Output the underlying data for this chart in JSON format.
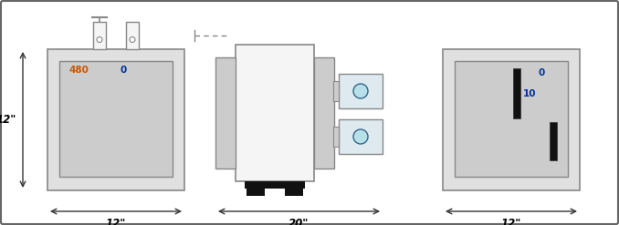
{
  "bg_color": "#ffffff",
  "border_color": "#666666",
  "light_gray": "#cccccc",
  "lighter_gray": "#e0e0e0",
  "near_white": "#f5f5f5",
  "dark_gray": "#888888",
  "white": "#ffffff",
  "blue_text": "#003399",
  "orange_text": "#cc5500",
  "circle_fill": "#b8e0e8",
  "black": "#111111",
  "dim_color": "#333333",
  "figsize": [
    6.78,
    2.47
  ],
  "dpi": 100
}
